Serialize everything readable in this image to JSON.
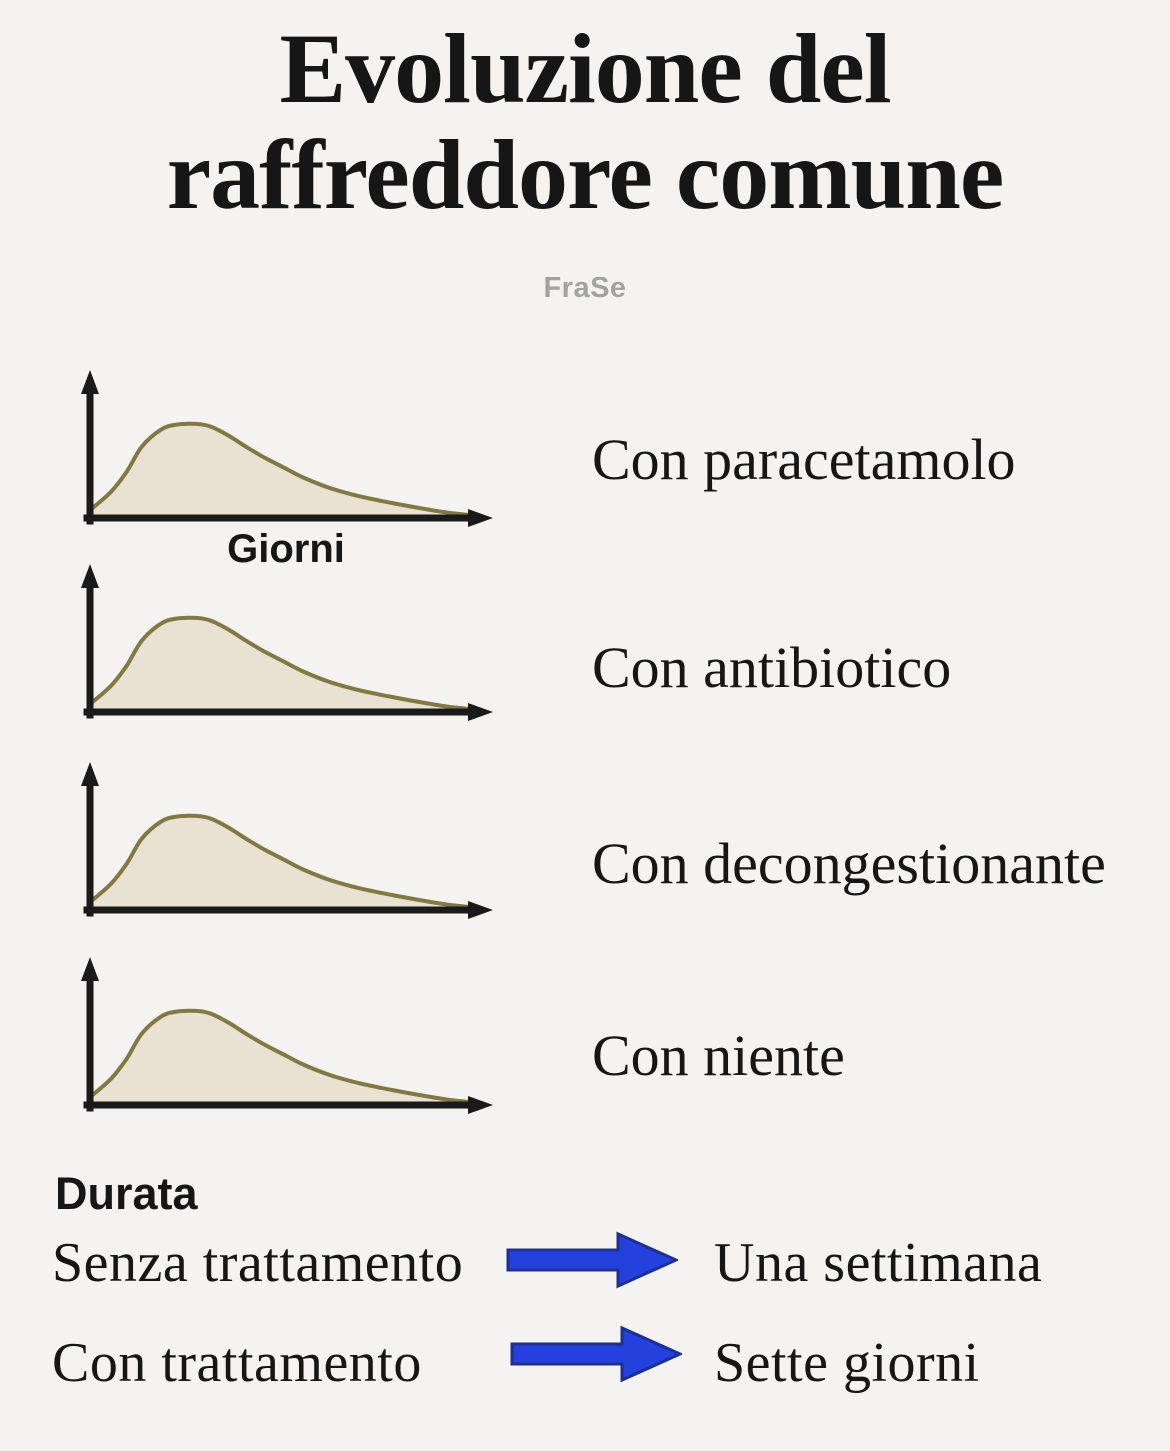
{
  "title": "Evoluzione del raffreddore comune",
  "watermark": "FraSe",
  "x_axis_label": "Giorni",
  "panels": [
    {
      "label": "Con paracetamolo"
    },
    {
      "label": "Con antibiotico"
    },
    {
      "label": "Con decongestionante"
    },
    {
      "label": "Con niente"
    }
  ],
  "footer": {
    "heading": "Durata",
    "rows": [
      {
        "left": "Senza trattamento",
        "right": "Una settimana"
      },
      {
        "left": "Con trattamento",
        "right": "Sette giorni"
      }
    ]
  },
  "colors": {
    "background": "#f4f3f1",
    "text": "#161616",
    "curve_fill": "#e9e2d3",
    "curve_stroke": "#817843",
    "axis": "#1a1a1a",
    "arrow_fill": "#2441dd",
    "arrow_stroke": "#1e2f94",
    "watermark": "#a2a2a2"
  },
  "chart_data": {
    "type": "area",
    "title": "Evoluzione del raffreddore comune",
    "xlabel": "Giorni",
    "ylabel": "",
    "xlim": [
      0,
      10
    ],
    "ylim": [
      0,
      1
    ],
    "grid": false,
    "legend_position": "right of each panel",
    "note": "Four stacked panels, each with identical right-skewed symptom-intensity curves; axes are plain arrows without tick marks or numbers.",
    "x": [
      0,
      0.5,
      0.9,
      1.3,
      1.8,
      2.2,
      2.7,
      3.1,
      3.6,
      4.0,
      4.5,
      5.0,
      5.5,
      6.2,
      7.0,
      7.8,
      8.6,
      9.3,
      10
    ],
    "series": [
      {
        "name": "Con paracetamolo",
        "values": [
          0.06,
          0.18,
          0.32,
          0.5,
          0.62,
          0.655,
          0.66,
          0.64,
          0.57,
          0.5,
          0.42,
          0.35,
          0.28,
          0.205,
          0.145,
          0.1,
          0.06,
          0.03,
          0.01
        ]
      },
      {
        "name": "Con antibiotico",
        "values": [
          0.06,
          0.18,
          0.32,
          0.5,
          0.62,
          0.655,
          0.66,
          0.64,
          0.57,
          0.5,
          0.42,
          0.35,
          0.28,
          0.205,
          0.145,
          0.1,
          0.06,
          0.03,
          0.01
        ]
      },
      {
        "name": "Con decongestionante",
        "values": [
          0.06,
          0.18,
          0.32,
          0.5,
          0.62,
          0.655,
          0.66,
          0.64,
          0.57,
          0.5,
          0.42,
          0.35,
          0.28,
          0.205,
          0.145,
          0.1,
          0.06,
          0.03,
          0.01
        ]
      },
      {
        "name": "Con niente",
        "values": [
          0.06,
          0.18,
          0.32,
          0.5,
          0.62,
          0.655,
          0.66,
          0.64,
          0.57,
          0.5,
          0.42,
          0.35,
          0.28,
          0.205,
          0.145,
          0.1,
          0.06,
          0.03,
          0.01
        ]
      }
    ]
  }
}
